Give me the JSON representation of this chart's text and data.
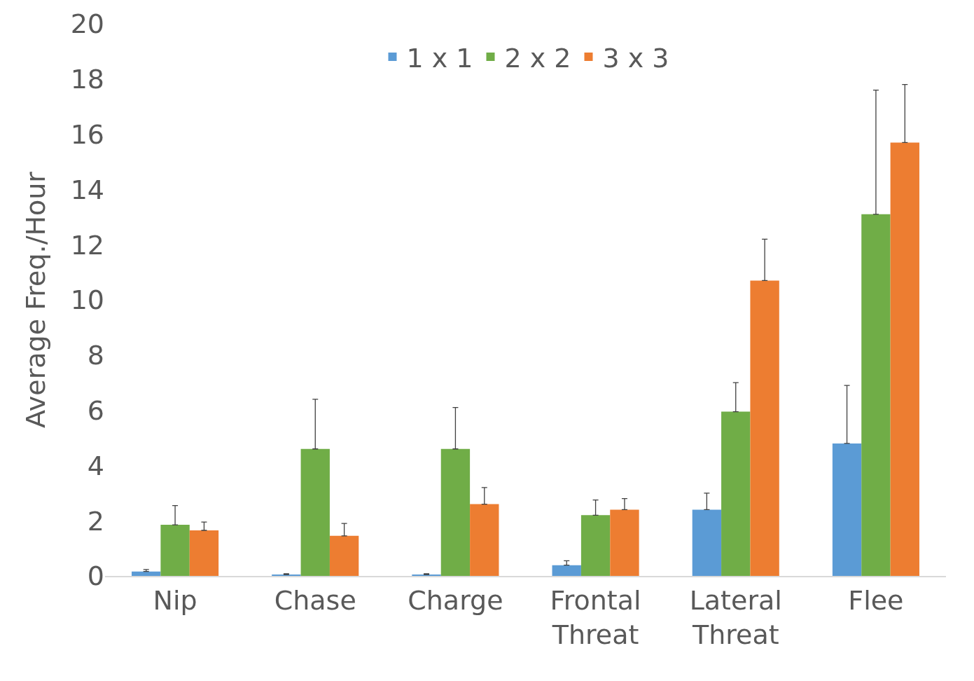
{
  "chart_data": {
    "type": "bar",
    "ylabel": "Average Freq./Hour",
    "categories": [
      "Nip",
      "Chase",
      "Charge",
      "Frontal Threat",
      "Lateral Threat",
      "Flee"
    ],
    "series": [
      {
        "name": "1 x 1",
        "color": "#5b9bd5",
        "values": [
          0.16,
          0.05,
          0.05,
          0.39,
          2.4,
          4.8
        ],
        "errors": [
          [
            0.16,
            0.23
          ],
          [
            0.05,
            0.08
          ],
          [
            0.05,
            0.08
          ],
          [
            0.39,
            0.55
          ],
          [
            2.4,
            3.0
          ],
          [
            4.8,
            6.9
          ]
        ]
      },
      {
        "name": "2 x 2",
        "color": "#70ad47",
        "values": [
          1.85,
          4.6,
          4.6,
          2.2,
          5.95,
          13.1
        ],
        "errors": [
          [
            1.85,
            2.55
          ],
          [
            4.6,
            6.4
          ],
          [
            4.6,
            6.1
          ],
          [
            2.2,
            2.75
          ],
          [
            5.95,
            7.0
          ],
          [
            13.1,
            17.6
          ]
        ]
      },
      {
        "name": "3 x 3",
        "color": "#ed7d31",
        "values": [
          1.65,
          1.45,
          2.6,
          2.4,
          10.7,
          15.7
        ],
        "errors": [
          [
            1.65,
            1.95
          ],
          [
            1.45,
            1.9
          ],
          [
            2.6,
            3.2
          ],
          [
            2.4,
            2.8
          ],
          [
            10.7,
            12.2
          ],
          [
            15.7,
            17.8
          ]
        ]
      }
    ],
    "ylim": [
      0,
      20
    ],
    "yticks": [
      0,
      2,
      4,
      6,
      8,
      10,
      12,
      14,
      16,
      18,
      20
    ],
    "grid": false,
    "legend": "top"
  }
}
